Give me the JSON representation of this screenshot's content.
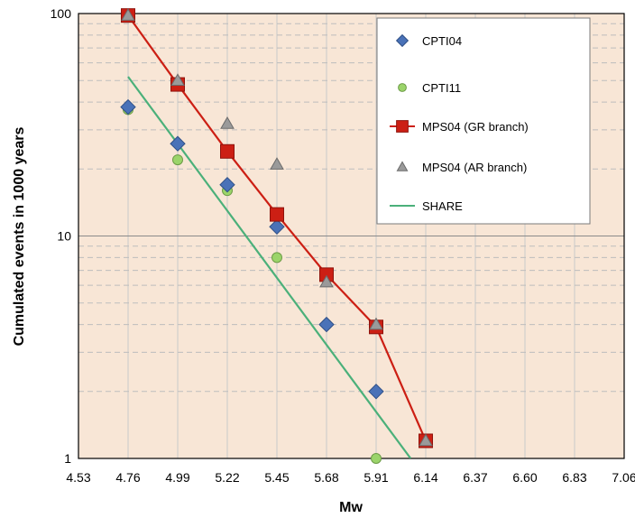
{
  "chart_data": {
    "type": "scatter",
    "title": "",
    "xlabel": "Mw",
    "ylabel": "Cumulated events in 1000 years",
    "x_ticks": [
      "4.53",
      "4.76",
      "4.99",
      "5.22",
      "5.45",
      "5.68",
      "5.91",
      "6.14",
      "6.37",
      "6.60",
      "6.83",
      "7.06"
    ],
    "y_ticks": [
      "1",
      "10",
      "100"
    ],
    "xlim": [
      4.53,
      7.06
    ],
    "ylim": [
      1,
      100
    ],
    "y_scale": "log",
    "grid": true,
    "plot_background": "#f8e6d6",
    "legend_position": "top-right",
    "series": [
      {
        "name": "CPTI04",
        "kind": "points",
        "marker": "diamond",
        "color": "#4a72b8",
        "x": [
          4.76,
          4.99,
          5.22,
          5.45,
          5.68,
          5.91
        ],
        "y": [
          38,
          26,
          17,
          11,
          4,
          2
        ]
      },
      {
        "name": "CPTI11",
        "kind": "points",
        "marker": "circle",
        "color": "#9bd46a",
        "x": [
          4.76,
          4.99,
          5.22,
          5.45,
          5.68,
          5.91
        ],
        "y": [
          37,
          22,
          16,
          8,
          4,
          1
        ]
      },
      {
        "name": "MPS04 (GR branch)",
        "kind": "line-points",
        "marker": "square",
        "color": "#cc1f14",
        "x": [
          4.76,
          4.99,
          5.22,
          5.45,
          5.68,
          5.91,
          6.14
        ],
        "y": [
          98,
          48,
          24,
          12.5,
          6.7,
          3.9,
          1.2
        ]
      },
      {
        "name": "MPS04 (AR branch)",
        "kind": "points",
        "marker": "triangle",
        "color": "#9a9a9a",
        "x": [
          4.76,
          4.99,
          5.22,
          5.45,
          5.68,
          5.91,
          6.14
        ],
        "y": [
          98,
          50,
          32,
          21,
          6.2,
          4,
          1.2
        ]
      },
      {
        "name": "SHARE",
        "kind": "line",
        "color": "#4bb07a",
        "x": [
          4.76,
          6.07
        ],
        "y": [
          52,
          1
        ]
      }
    ]
  }
}
